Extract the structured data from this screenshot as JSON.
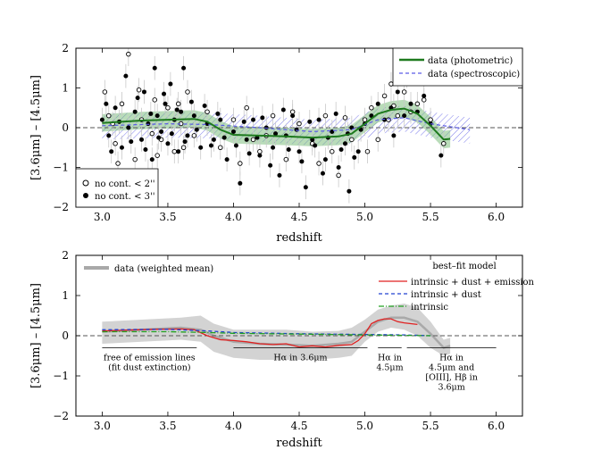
{
  "chart_data": [
    {
      "type": "scatter",
      "xlabel": "redshift",
      "ylabel": "[3.6μm] – [4.5μm]",
      "xlim": [
        2.8,
        6.2
      ],
      "ylim": [
        -2,
        2
      ],
      "xticks": [
        "3.0",
        "3.5",
        "4.0",
        "4.5",
        "5.0",
        "5.5",
        "6.0"
      ],
      "yticks": [
        "−2",
        "−1",
        "0",
        "1",
        "2"
      ],
      "legend_lines": [
        "data (photometric)",
        "data (spectroscopic)"
      ],
      "legend_points": [
        "no cont. < 2''",
        "no cont. < 3''"
      ],
      "colors": {
        "photometric": "#1e7a1e",
        "photometric_band": "#7fbf7f",
        "spectroscopic": "#5a5ae6",
        "points": "#000000"
      },
      "photometric_line": {
        "x": [
          3.0,
          3.3,
          3.7,
          3.8,
          3.9,
          4.0,
          4.2,
          4.4,
          4.6,
          4.8,
          4.9,
          5.0,
          5.1,
          5.2,
          5.3,
          5.4,
          5.5,
          5.6,
          5.65
        ],
        "y": [
          0.12,
          0.18,
          0.22,
          0.15,
          -0.05,
          -0.18,
          -0.2,
          -0.22,
          -0.25,
          -0.22,
          -0.15,
          0.1,
          0.35,
          0.45,
          0.48,
          0.35,
          0.05,
          -0.3,
          -0.28
        ]
      },
      "spectroscopic_line": {
        "x": [
          3.0,
          3.5,
          3.8,
          4.2,
          4.6,
          4.9,
          5.1,
          5.3,
          5.5,
          5.7,
          5.8
        ],
        "y": [
          0.05,
          0.1,
          0.08,
          0.0,
          -0.1,
          -0.05,
          0.2,
          0.25,
          0.1,
          0.0,
          -0.05
        ]
      },
      "points_open": [
        [
          3.02,
          0.9
        ],
        [
          3.05,
          0.3
        ],
        [
          3.1,
          -0.4
        ],
        [
          3.15,
          0.6
        ],
        [
          3.2,
          1.85
        ],
        [
          3.25,
          -0.8
        ],
        [
          3.3,
          0.2
        ],
        [
          3.35,
          -1.1
        ],
        [
          3.4,
          0.7
        ],
        [
          3.45,
          -0.3
        ],
        [
          3.5,
          0.5
        ],
        [
          3.55,
          -0.6
        ],
        [
          3.6,
          0.1
        ],
        [
          3.65,
          0.9
        ],
        [
          3.7,
          -0.2
        ],
        [
          3.8,
          0.4
        ],
        [
          3.9,
          -0.5
        ],
        [
          4.0,
          0.2
        ],
        [
          4.05,
          -0.9
        ],
        [
          4.1,
          0.5
        ],
        [
          4.2,
          -0.6
        ],
        [
          4.3,
          0.3
        ],
        [
          4.4,
          -0.8
        ],
        [
          4.5,
          0.1
        ],
        [
          4.6,
          -0.4
        ],
        [
          4.7,
          0.3
        ],
        [
          4.8,
          -1.2
        ],
        [
          4.9,
          -0.3
        ],
        [
          5.0,
          0.2
        ],
        [
          5.05,
          0.5
        ],
        [
          5.1,
          -0.3
        ],
        [
          5.15,
          0.8
        ],
        [
          5.2,
          1.1
        ],
        [
          5.25,
          0.3
        ],
        [
          5.3,
          0.9
        ],
        [
          5.35,
          0.4
        ],
        [
          5.4,
          0.6
        ],
        [
          5.5,
          0.2
        ],
        [
          5.6,
          -0.4
        ],
        [
          3.12,
          -0.9
        ],
        [
          3.28,
          0.95
        ],
        [
          3.42,
          -0.7
        ],
        [
          3.58,
          0.6
        ],
        [
          4.25,
          -0.2
        ],
        [
          4.45,
          0.4
        ],
        [
          4.65,
          -0.9
        ],
        [
          4.85,
          0.25
        ],
        [
          5.02,
          -0.6
        ],
        [
          5.18,
          0.2
        ],
        [
          5.45,
          0.7
        ],
        [
          3.08,
          0.1
        ],
        [
          3.38,
          -0.15
        ],
        [
          3.62,
          -0.5
        ],
        [
          4.15,
          -0.3
        ],
        [
          4.75,
          -0.6
        ],
        [
          5.22,
          0.55
        ]
      ],
      "points_filled": [
        [
          3.0,
          0.2
        ],
        [
          3.05,
          -0.2
        ],
        [
          3.1,
          0.5
        ],
        [
          3.15,
          -0.5
        ],
        [
          3.18,
          1.3
        ],
        [
          3.2,
          0.0
        ],
        [
          3.25,
          0.4
        ],
        [
          3.3,
          -0.3
        ],
        [
          3.32,
          0.9
        ],
        [
          3.35,
          0.1
        ],
        [
          3.38,
          -0.8
        ],
        [
          3.4,
          1.5
        ],
        [
          3.42,
          0.3
        ],
        [
          3.45,
          -0.1
        ],
        [
          3.48,
          0.6
        ],
        [
          3.5,
          -0.4
        ],
        [
          3.52,
          1.1
        ],
        [
          3.55,
          0.2
        ],
        [
          3.58,
          -0.6
        ],
        [
          3.6,
          0.4
        ],
        [
          3.62,
          1.5
        ],
        [
          3.65,
          -0.2
        ],
        [
          3.7,
          0.3
        ],
        [
          3.75,
          -0.5
        ],
        [
          3.8,
          0.1
        ],
        [
          3.85,
          -0.3
        ],
        [
          3.9,
          0.2
        ],
        [
          3.95,
          -0.8
        ],
        [
          4.0,
          -0.1
        ],
        [
          4.05,
          -1.4
        ],
        [
          4.1,
          -0.3
        ],
        [
          4.15,
          0.2
        ],
        [
          4.2,
          -0.7
        ],
        [
          4.25,
          0.0
        ],
        [
          4.3,
          -0.5
        ],
        [
          4.35,
          -1.2
        ],
        [
          4.4,
          -0.2
        ],
        [
          4.45,
          0.3
        ],
        [
          4.5,
          -0.6
        ],
        [
          4.55,
          -1.5
        ],
        [
          4.6,
          -0.3
        ],
        [
          4.65,
          0.2
        ],
        [
          4.7,
          -0.8
        ],
        [
          4.75,
          -0.1
        ],
        [
          4.8,
          -1.0
        ],
        [
          4.85,
          -0.4
        ],
        [
          4.88,
          -1.6
        ],
        [
          4.9,
          0.0
        ],
        [
          4.95,
          -0.6
        ],
        [
          5.0,
          0.1
        ],
        [
          5.05,
          0.3
        ],
        [
          5.1,
          0.6
        ],
        [
          5.15,
          0.2
        ],
        [
          5.2,
          0.5
        ],
        [
          5.22,
          -0.2
        ],
        [
          5.25,
          0.9
        ],
        [
          5.3,
          0.3
        ],
        [
          5.32,
          1.3
        ],
        [
          5.35,
          0.6
        ],
        [
          5.4,
          0.4
        ],
        [
          5.45,
          0.8
        ],
        [
          5.5,
          0.1
        ],
        [
          5.58,
          -0.7
        ],
        [
          3.03,
          0.6
        ],
        [
          3.07,
          -0.6
        ],
        [
          3.13,
          0.15
        ],
        [
          3.22,
          -0.35
        ],
        [
          3.27,
          0.75
        ],
        [
          3.33,
          -0.55
        ],
        [
          3.37,
          0.35
        ],
        [
          3.43,
          -0.25
        ],
        [
          3.47,
          0.85
        ],
        [
          3.53,
          -0.15
        ],
        [
          3.57,
          0.45
        ],
        [
          3.63,
          -0.35
        ],
        [
          3.68,
          0.65
        ],
        [
          3.72,
          -0.05
        ],
        [
          3.78,
          0.55
        ],
        [
          3.83,
          -0.45
        ],
        [
          3.88,
          0.35
        ],
        [
          3.93,
          -0.25
        ],
        [
          4.02,
          -0.45
        ],
        [
          4.08,
          0.15
        ],
        [
          4.12,
          -0.65
        ],
        [
          4.18,
          -0.25
        ],
        [
          4.22,
          0.25
        ],
        [
          4.28,
          -0.95
        ],
        [
          4.32,
          -0.15
        ],
        [
          4.38,
          0.45
        ],
        [
          4.42,
          -0.55
        ],
        [
          4.48,
          -0.05
        ],
        [
          4.52,
          -0.85
        ],
        [
          4.58,
          0.15
        ],
        [
          4.62,
          -0.45
        ],
        [
          4.68,
          -1.15
        ],
        [
          4.72,
          -0.25
        ],
        [
          4.78,
          0.35
        ],
        [
          4.82,
          -0.55
        ],
        [
          4.87,
          -0.15
        ],
        [
          4.92,
          -0.75
        ],
        [
          4.97,
          -0.05
        ]
      ]
    },
    {
      "type": "line",
      "xlabel": "redshift",
      "ylabel": "[3.6μm] – [4.5μm]",
      "xlim": [
        2.8,
        6.2
      ],
      "ylim": [
        -2,
        2
      ],
      "xticks": [
        "3.0",
        "3.5",
        "4.0",
        "4.5",
        "5.0",
        "5.5",
        "6.0"
      ],
      "yticks": [
        "−2",
        "−1",
        "0",
        "1",
        "2"
      ],
      "legend_band": "data (weighted mean)",
      "legend_title": "best–fit model",
      "series": [
        {
          "name": "intrinsic + dust + emission",
          "color": "#e02020",
          "style": "solid",
          "x": [
            3.0,
            3.2,
            3.4,
            3.6,
            3.7,
            3.8,
            3.9,
            4.0,
            4.1,
            4.2,
            4.3,
            4.4,
            4.5,
            4.6,
            4.7,
            4.8,
            4.9,
            4.95,
            5.0,
            5.05,
            5.1,
            5.15,
            5.2,
            5.25,
            5.3,
            5.4
          ],
          "y": [
            0.12,
            0.14,
            0.16,
            0.17,
            0.15,
            0.0,
            -0.1,
            -0.12,
            -0.15,
            -0.2,
            -0.22,
            -0.2,
            -0.28,
            -0.25,
            -0.28,
            -0.24,
            -0.22,
            -0.12,
            0.05,
            0.3,
            0.38,
            0.42,
            0.42,
            0.35,
            0.32,
            0.28
          ]
        },
        {
          "name": "intrinsic + dust",
          "color": "#2040d0",
          "style": "dashed",
          "x": [
            3.0,
            3.5,
            3.8,
            4.0,
            4.5,
            5.0,
            5.3,
            5.5
          ],
          "y": [
            0.15,
            0.16,
            0.12,
            0.08,
            0.05,
            0.03,
            0.02,
            0.0
          ]
        },
        {
          "name": "intrinsic",
          "color": "#20a020",
          "style": "dashdot",
          "x": [
            3.0,
            3.5,
            3.8,
            4.0,
            4.5,
            5.0,
            5.3,
            5.5
          ],
          "y": [
            0.1,
            0.1,
            0.08,
            0.06,
            0.04,
            0.02,
            0.01,
            0.0
          ]
        }
      ],
      "weighted_mean": {
        "x": [
          3.0,
          3.3,
          3.6,
          3.75,
          3.85,
          4.0,
          4.2,
          4.4,
          4.6,
          4.8,
          4.9,
          5.0,
          5.1,
          5.2,
          5.3,
          5.4,
          5.5,
          5.6,
          5.65
        ],
        "y": [
          0.1,
          0.15,
          0.2,
          0.15,
          0.0,
          -0.15,
          -0.2,
          -0.22,
          -0.25,
          -0.2,
          -0.15,
          0.1,
          0.35,
          0.45,
          0.45,
          0.35,
          0.05,
          -0.3,
          -0.25
        ],
        "lower": [
          -0.2,
          -0.15,
          -0.1,
          -0.15,
          -0.4,
          -0.55,
          -0.6,
          -0.6,
          -0.6,
          -0.55,
          -0.5,
          -0.15,
          0.1,
          0.2,
          0.15,
          0.0,
          -0.3,
          -0.5,
          -0.45
        ],
        "upper": [
          0.35,
          0.4,
          0.45,
          0.5,
          0.3,
          0.15,
          0.15,
          0.15,
          0.1,
          0.12,
          0.2,
          0.4,
          0.65,
          0.75,
          0.8,
          0.7,
          0.35,
          -0.1,
          -0.05
        ]
      },
      "regions": [
        {
          "x0": 3.0,
          "x1": 3.72,
          "label": "free of emission lines\n(fit dust extinction)"
        },
        {
          "x0": 4.0,
          "x1": 5.02,
          "label": "Hα in 3.6μm"
        },
        {
          "x0": 5.1,
          "x1": 5.28,
          "label": "Hα in\n4.5μm"
        },
        {
          "x0": 5.32,
          "x1": 6.0,
          "label": "Hα in\n4.5μm and\n[OIII], Hβ in\n3.6μm"
        }
      ],
      "colors": {
        "band": "#d3d3d3",
        "mean": "#a9a9a9"
      }
    }
  ]
}
